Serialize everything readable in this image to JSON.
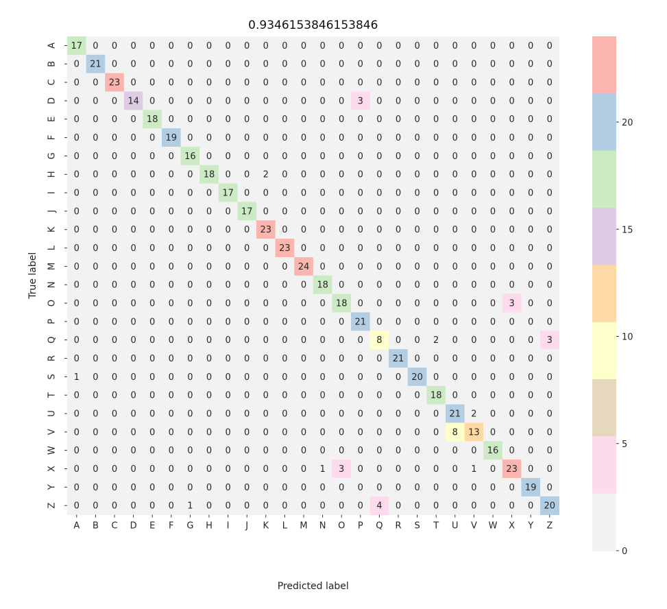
{
  "chart_data": {
    "type": "heatmap",
    "title": "0.9346153846153846",
    "xlabel": "Predicted label",
    "ylabel": "True label",
    "x_categories": [
      "A",
      "B",
      "C",
      "D",
      "E",
      "F",
      "G",
      "H",
      "I",
      "J",
      "K",
      "L",
      "M",
      "N",
      "O",
      "P",
      "Q",
      "R",
      "S",
      "T",
      "U",
      "V",
      "W",
      "X",
      "Y",
      "Z"
    ],
    "y_categories": [
      "A",
      "B",
      "C",
      "D",
      "E",
      "F",
      "G",
      "H",
      "I",
      "J",
      "K",
      "L",
      "M",
      "N",
      "O",
      "P",
      "Q",
      "R",
      "S",
      "T",
      "U",
      "V",
      "W",
      "X",
      "Y",
      "Z"
    ],
    "matrix": [
      [
        17,
        0,
        0,
        0,
        0,
        0,
        0,
        0,
        0,
        0,
        0,
        0,
        0,
        0,
        0,
        0,
        0,
        0,
        0,
        0,
        0,
        0,
        0,
        0,
        0,
        0
      ],
      [
        0,
        21,
        0,
        0,
        0,
        0,
        0,
        0,
        0,
        0,
        0,
        0,
        0,
        0,
        0,
        0,
        0,
        0,
        0,
        0,
        0,
        0,
        0,
        0,
        0,
        0
      ],
      [
        0,
        0,
        23,
        0,
        0,
        0,
        0,
        0,
        0,
        0,
        0,
        0,
        0,
        0,
        0,
        0,
        0,
        0,
        0,
        0,
        0,
        0,
        0,
        0,
        0,
        0
      ],
      [
        0,
        0,
        0,
        14,
        0,
        0,
        0,
        0,
        0,
        0,
        0,
        0,
        0,
        0,
        0,
        3,
        0,
        0,
        0,
        0,
        0,
        0,
        0,
        0,
        0,
        0
      ],
      [
        0,
        0,
        0,
        0,
        18,
        0,
        0,
        0,
        0,
        0,
        0,
        0,
        0,
        0,
        0,
        0,
        0,
        0,
        0,
        0,
        0,
        0,
        0,
        0,
        0,
        0
      ],
      [
        0,
        0,
        0,
        0,
        0,
        19,
        0,
        0,
        0,
        0,
        0,
        0,
        0,
        0,
        0,
        0,
        0,
        0,
        0,
        0,
        0,
        0,
        0,
        0,
        0,
        0
      ],
      [
        0,
        0,
        0,
        0,
        0,
        0,
        16,
        0,
        0,
        0,
        0,
        0,
        0,
        0,
        0,
        0,
        0,
        0,
        0,
        0,
        0,
        0,
        0,
        0,
        0,
        0
      ],
      [
        0,
        0,
        0,
        0,
        0,
        0,
        0,
        18,
        0,
        0,
        2,
        0,
        0,
        0,
        0,
        0,
        0,
        0,
        0,
        0,
        0,
        0,
        0,
        0,
        0,
        0
      ],
      [
        0,
        0,
        0,
        0,
        0,
        0,
        0,
        0,
        17,
        0,
        0,
        0,
        0,
        0,
        0,
        0,
        0,
        0,
        0,
        0,
        0,
        0,
        0,
        0,
        0,
        0
      ],
      [
        0,
        0,
        0,
        0,
        0,
        0,
        0,
        0,
        0,
        17,
        0,
        0,
        0,
        0,
        0,
        0,
        0,
        0,
        0,
        0,
        0,
        0,
        0,
        0,
        0,
        0
      ],
      [
        0,
        0,
        0,
        0,
        0,
        0,
        0,
        0,
        0,
        0,
        23,
        0,
        0,
        0,
        0,
        0,
        0,
        0,
        0,
        0,
        0,
        0,
        0,
        0,
        0,
        0
      ],
      [
        0,
        0,
        0,
        0,
        0,
        0,
        0,
        0,
        0,
        0,
        0,
        23,
        0,
        0,
        0,
        0,
        0,
        0,
        0,
        0,
        0,
        0,
        0,
        0,
        0,
        0
      ],
      [
        0,
        0,
        0,
        0,
        0,
        0,
        0,
        0,
        0,
        0,
        0,
        0,
        24,
        0,
        0,
        0,
        0,
        0,
        0,
        0,
        0,
        0,
        0,
        0,
        0,
        0
      ],
      [
        0,
        0,
        0,
        0,
        0,
        0,
        0,
        0,
        0,
        0,
        0,
        0,
        0,
        18,
        0,
        0,
        0,
        0,
        0,
        0,
        0,
        0,
        0,
        0,
        0,
        0
      ],
      [
        0,
        0,
        0,
        0,
        0,
        0,
        0,
        0,
        0,
        0,
        0,
        0,
        0,
        0,
        18,
        0,
        0,
        0,
        0,
        0,
        0,
        0,
        0,
        3,
        0,
        0
      ],
      [
        0,
        0,
        0,
        0,
        0,
        0,
        0,
        0,
        0,
        0,
        0,
        0,
        0,
        0,
        0,
        21,
        0,
        0,
        0,
        0,
        0,
        0,
        0,
        0,
        0,
        0
      ],
      [
        0,
        0,
        0,
        0,
        0,
        0,
        0,
        0,
        0,
        0,
        0,
        0,
        0,
        0,
        0,
        0,
        8,
        0,
        0,
        2,
        0,
        0,
        0,
        0,
        0,
        3
      ],
      [
        0,
        0,
        0,
        0,
        0,
        0,
        0,
        0,
        0,
        0,
        0,
        0,
        0,
        0,
        0,
        0,
        0,
        21,
        0,
        0,
        0,
        0,
        0,
        0,
        0,
        0
      ],
      [
        1,
        0,
        0,
        0,
        0,
        0,
        0,
        0,
        0,
        0,
        0,
        0,
        0,
        0,
        0,
        0,
        0,
        0,
        20,
        0,
        0,
        0,
        0,
        0,
        0,
        0
      ],
      [
        0,
        0,
        0,
        0,
        0,
        0,
        0,
        0,
        0,
        0,
        0,
        0,
        0,
        0,
        0,
        0,
        0,
        0,
        0,
        18,
        0,
        0,
        0,
        0,
        0,
        0
      ],
      [
        0,
        0,
        0,
        0,
        0,
        0,
        0,
        0,
        0,
        0,
        0,
        0,
        0,
        0,
        0,
        0,
        0,
        0,
        0,
        0,
        21,
        2,
        0,
        0,
        0,
        0
      ],
      [
        0,
        0,
        0,
        0,
        0,
        0,
        0,
        0,
        0,
        0,
        0,
        0,
        0,
        0,
        0,
        0,
        0,
        0,
        0,
        0,
        8,
        13,
        0,
        0,
        0,
        0
      ],
      [
        0,
        0,
        0,
        0,
        0,
        0,
        0,
        0,
        0,
        0,
        0,
        0,
        0,
        0,
        0,
        0,
        0,
        0,
        0,
        0,
        0,
        0,
        16,
        0,
        0,
        0
      ],
      [
        0,
        0,
        0,
        0,
        0,
        0,
        0,
        0,
        0,
        0,
        0,
        0,
        0,
        1,
        3,
        0,
        0,
        0,
        0,
        0,
        0,
        1,
        0,
        23,
        0,
        0
      ],
      [
        0,
        0,
        0,
        0,
        0,
        0,
        0,
        0,
        0,
        0,
        0,
        0,
        0,
        0,
        0,
        0,
        0,
        0,
        0,
        0,
        0,
        0,
        0,
        0,
        19,
        0
      ],
      [
        0,
        0,
        0,
        0,
        0,
        0,
        1,
        0,
        0,
        0,
        0,
        0,
        0,
        0,
        0,
        0,
        4,
        0,
        0,
        0,
        0,
        0,
        0,
        0,
        0,
        20
      ]
    ],
    "colorbar": {
      "colormap": "Pastel1",
      "range": [
        0,
        24
      ],
      "ticks": [
        0,
        5,
        10,
        15,
        20
      ],
      "bands_top_to_bottom": [
        "#fbb4ae",
        "#b3cde3",
        "#ccebc5",
        "#decbe4",
        "#fed9a6",
        "#ffffcc",
        "#e5d8bd",
        "#fddaec",
        "#f2f2f2"
      ]
    }
  }
}
